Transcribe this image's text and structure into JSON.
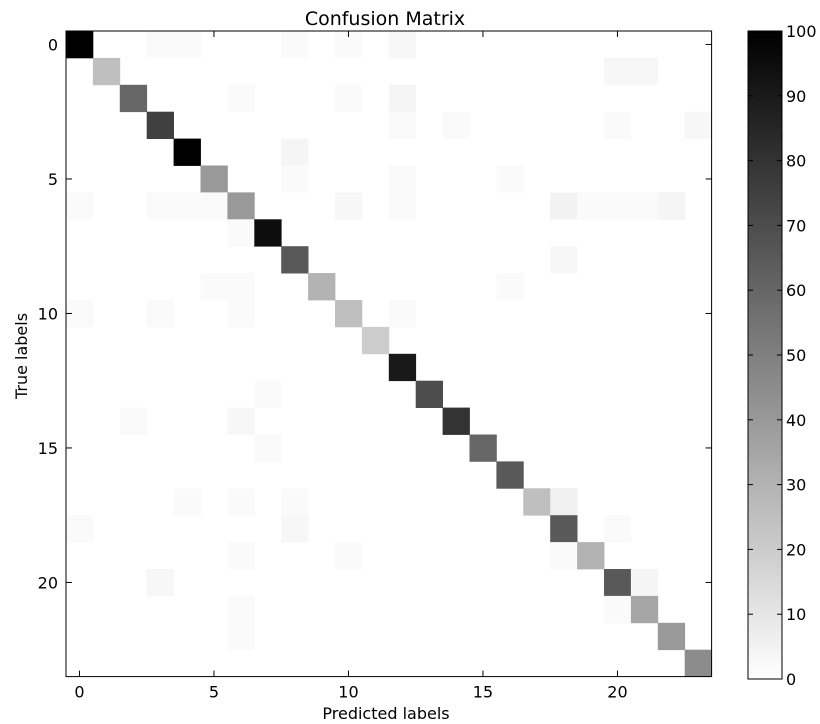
{
  "chart_data": {
    "type": "heatmap",
    "title": "Confusion Matrix",
    "xlabel": "Predicted labels",
    "ylabel": "True labels",
    "n_classes": 24,
    "xticks": [
      0,
      5,
      10,
      15,
      20
    ],
    "yticks": [
      0,
      5,
      10,
      15,
      20
    ],
    "colorbar": {
      "min": 0,
      "max": 100,
      "ticks": [
        0,
        10,
        20,
        30,
        40,
        50,
        60,
        70,
        80,
        90,
        100
      ],
      "colormap": "gray_r"
    },
    "matrix": [
      [
        100,
        0,
        0,
        2,
        2,
        0,
        0,
        0,
        2,
        0,
        2,
        0,
        3,
        0,
        0,
        0,
        0,
        0,
        0,
        0,
        0,
        0,
        0,
        0
      ],
      [
        0,
        25,
        0,
        0,
        0,
        0,
        0,
        0,
        0,
        0,
        0,
        0,
        0,
        0,
        0,
        0,
        0,
        0,
        0,
        0,
        3,
        3,
        0,
        0
      ],
      [
        0,
        0,
        60,
        0,
        0,
        0,
        2,
        0,
        0,
        0,
        2,
        0,
        4,
        0,
        0,
        0,
        0,
        0,
        0,
        0,
        0,
        0,
        0,
        0
      ],
      [
        0,
        0,
        0,
        75,
        0,
        0,
        0,
        0,
        0,
        0,
        0,
        0,
        2,
        0,
        2,
        0,
        0,
        0,
        0,
        0,
        2,
        0,
        0,
        3
      ],
      [
        0,
        0,
        0,
        0,
        100,
        0,
        0,
        0,
        4,
        0,
        0,
        0,
        0,
        0,
        0,
        0,
        0,
        0,
        0,
        0,
        0,
        0,
        0,
        0
      ],
      [
        0,
        0,
        0,
        0,
        0,
        40,
        0,
        0,
        2,
        0,
        0,
        0,
        2,
        0,
        0,
        0,
        2,
        0,
        0,
        0,
        0,
        0,
        0,
        0
      ],
      [
        2,
        0,
        0,
        2,
        2,
        2,
        40,
        0,
        0,
        0,
        3,
        0,
        2,
        0,
        0,
        0,
        0,
        0,
        5,
        2,
        2,
        2,
        4,
        0
      ],
      [
        0,
        0,
        0,
        0,
        0,
        0,
        2,
        95,
        0,
        0,
        0,
        0,
        0,
        0,
        0,
        0,
        0,
        0,
        0,
        0,
        0,
        0,
        0,
        0
      ],
      [
        0,
        0,
        0,
        0,
        0,
        0,
        0,
        0,
        65,
        0,
        0,
        0,
        0,
        0,
        0,
        0,
        0,
        0,
        3,
        0,
        0,
        0,
        0,
        0
      ],
      [
        0,
        0,
        0,
        0,
        0,
        2,
        2,
        0,
        0,
        30,
        0,
        0,
        0,
        0,
        0,
        0,
        2,
        0,
        0,
        0,
        0,
        0,
        0,
        0
      ],
      [
        2,
        0,
        0,
        2,
        0,
        0,
        2,
        0,
        0,
        0,
        25,
        0,
        2,
        0,
        0,
        0,
        0,
        0,
        0,
        0,
        0,
        0,
        0,
        0
      ],
      [
        0,
        0,
        0,
        0,
        0,
        0,
        0,
        0,
        0,
        0,
        0,
        20,
        0,
        0,
        0,
        0,
        0,
        0,
        0,
        0,
        0,
        0,
        0,
        0
      ],
      [
        0,
        0,
        0,
        0,
        0,
        0,
        0,
        0,
        0,
        0,
        0,
        0,
        90,
        0,
        0,
        0,
        0,
        0,
        0,
        0,
        0,
        0,
        0,
        0
      ],
      [
        0,
        0,
        0,
        0,
        0,
        0,
        0,
        2,
        0,
        0,
        0,
        0,
        0,
        70,
        0,
        0,
        0,
        0,
        0,
        0,
        0,
        0,
        0,
        0
      ],
      [
        0,
        0,
        2,
        0,
        0,
        0,
        3,
        0,
        0,
        0,
        0,
        0,
        0,
        0,
        80,
        0,
        0,
        0,
        0,
        0,
        0,
        0,
        0,
        0
      ],
      [
        0,
        0,
        0,
        0,
        0,
        0,
        0,
        2,
        0,
        0,
        0,
        0,
        0,
        0,
        0,
        60,
        0,
        0,
        0,
        0,
        0,
        0,
        0,
        0
      ],
      [
        0,
        0,
        0,
        0,
        0,
        0,
        0,
        0,
        0,
        0,
        0,
        0,
        0,
        0,
        0,
        0,
        65,
        0,
        0,
        0,
        0,
        0,
        0,
        0
      ],
      [
        0,
        0,
        0,
        0,
        2,
        0,
        2,
        0,
        2,
        0,
        0,
        0,
        0,
        0,
        0,
        0,
        0,
        25,
        6,
        0,
        0,
        0,
        0,
        0
      ],
      [
        2,
        0,
        0,
        0,
        0,
        0,
        0,
        0,
        3,
        0,
        0,
        0,
        0,
        0,
        0,
        0,
        0,
        0,
        65,
        0,
        2,
        0,
        0,
        0
      ],
      [
        0,
        0,
        0,
        0,
        0,
        0,
        2,
        0,
        0,
        0,
        2,
        0,
        0,
        0,
        0,
        0,
        0,
        0,
        2,
        30,
        0,
        0,
        0,
        0
      ],
      [
        0,
        0,
        0,
        3,
        0,
        0,
        0,
        0,
        0,
        0,
        0,
        0,
        0,
        0,
        0,
        0,
        0,
        0,
        0,
        0,
        65,
        4,
        0,
        0
      ],
      [
        0,
        0,
        0,
        0,
        0,
        0,
        2,
        0,
        0,
        0,
        0,
        0,
        0,
        0,
        0,
        0,
        0,
        0,
        0,
        0,
        2,
        35,
        0,
        0
      ],
      [
        0,
        0,
        0,
        0,
        0,
        0,
        2,
        0,
        0,
        0,
        0,
        0,
        0,
        0,
        0,
        0,
        0,
        0,
        0,
        0,
        0,
        0,
        40,
        0
      ],
      [
        0,
        0,
        0,
        0,
        0,
        0,
        0,
        0,
        0,
        0,
        0,
        0,
        0,
        0,
        0,
        0,
        0,
        0,
        0,
        0,
        0,
        0,
        0,
        45
      ]
    ]
  }
}
